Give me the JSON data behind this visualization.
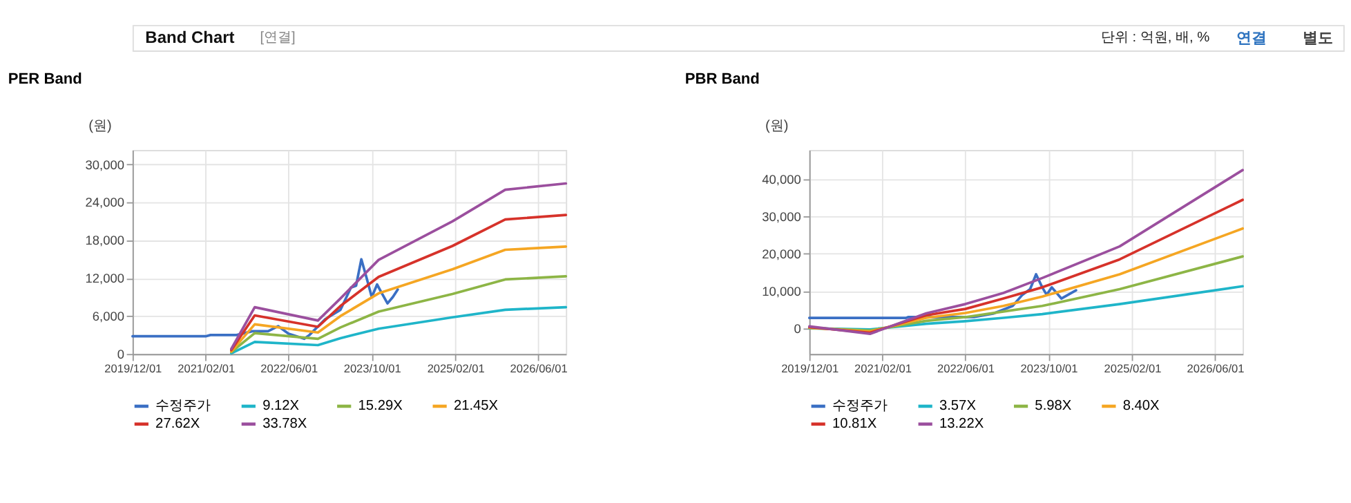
{
  "chart_data": [
    {
      "type": "line",
      "title": "PER Band",
      "ylabel": "(원)",
      "annotations": [
        "Band Chart",
        "[연결]",
        "단위 : 억원, 배, %",
        "연결",
        "별도"
      ],
      "xlim": [
        "2019-12-01",
        "2026-11-10"
      ],
      "xticks": [
        {
          "value": "2019-12-01",
          "label": "2019/12/01"
        },
        {
          "value": "2021-02-01",
          "label": "2021/02/01"
        },
        {
          "value": "2022-06-01",
          "label": "2022/06/01"
        },
        {
          "value": "2023-10-01",
          "label": "2023/10/01"
        },
        {
          "value": "2025-02-01",
          "label": "2025/02/01"
        },
        {
          "value": "2026-06-01",
          "label": "2026/06/01"
        }
      ],
      "ylim": [
        0,
        32300
      ],
      "yticks": [
        {
          "value": 0,
          "label": "0"
        },
        {
          "value": 6000,
          "label": "6,000"
        },
        {
          "value": 12000,
          "label": "12,000"
        },
        {
          "value": 18000,
          "label": "18,000"
        },
        {
          "value": 24000,
          "label": "24,000"
        },
        {
          "value": 30000,
          "label": "30,000"
        }
      ],
      "grid": true,
      "legend": "bottom",
      "series": [
        {
          "name": "수정주가",
          "color": "#3a6fc4",
          "x": [
            "2019-12-01",
            "2021-02-01",
            "2021-03-01",
            "2021-08-01",
            "2021-11-01",
            "2022-02-01",
            "2022-04-01",
            "2022-06-01",
            "2022-09-01",
            "2022-10-01",
            "2023-01-01",
            "2023-04-01",
            "2023-06-01",
            "2023-07-01",
            "2023-08-01",
            "2023-09-01",
            "2023-10-01",
            "2023-11-01",
            "2023-12-01",
            "2024-01-01",
            "2024-02-01",
            "2024-03-01"
          ],
          "values": [
            2800,
            2800,
            3000,
            3000,
            3600,
            3600,
            4400,
            3200,
            2400,
            3000,
            5500,
            7000,
            10500,
            10800,
            15000,
            12000,
            9000,
            11000,
            9500,
            8000,
            9000,
            10200
          ]
        },
        {
          "name": "9.12X",
          "color": "#1fb5c9",
          "x": [
            "2021-07-01",
            "2021-11-15",
            "2022-11-20",
            "2023-04-01",
            "2023-11-10",
            "2025-01-15",
            "2025-11-20",
            "2026-11-10"
          ],
          "values": [
            100,
            1900,
            1400,
            2500,
            4000,
            5800,
            7000,
            7400
          ]
        },
        {
          "name": "15.29X",
          "color": "#8db546",
          "x": [
            "2021-07-01",
            "2021-11-15",
            "2022-11-20",
            "2023-04-01",
            "2023-11-10",
            "2025-01-15",
            "2025-11-20",
            "2026-11-10"
          ],
          "values": [
            300,
            3300,
            2400,
            4200,
            6700,
            9500,
            11800,
            12300
          ]
        },
        {
          "name": "21.45X",
          "color": "#f5a623",
          "x": [
            "2021-07-01",
            "2021-11-15",
            "2022-11-20",
            "2023-04-01",
            "2023-11-10",
            "2025-01-15",
            "2025-11-20",
            "2026-11-10"
          ],
          "values": [
            400,
            4700,
            3400,
            6000,
            9600,
            13400,
            16500,
            17000
          ]
        },
        {
          "name": "27.62X",
          "color": "#d6322a",
          "x": [
            "2021-07-01",
            "2021-11-15",
            "2022-11-20",
            "2023-04-01",
            "2023-11-10",
            "2025-01-15",
            "2025-11-20",
            "2026-11-10"
          ],
          "values": [
            600,
            6100,
            4300,
            7600,
            12200,
            17100,
            21300,
            22000
          ]
        },
        {
          "name": "33.78X",
          "color": "#9b4f9e",
          "x": [
            "2021-07-01",
            "2021-11-15",
            "2022-11-20",
            "2023-04-01",
            "2023-11-10",
            "2025-01-15",
            "2025-11-20",
            "2026-11-10"
          ],
          "values": [
            800,
            7400,
            5300,
            8800,
            14900,
            21000,
            26000,
            27000
          ]
        }
      ]
    },
    {
      "type": "line",
      "title": "PBR Band",
      "ylabel": "(원)",
      "xlim": [
        "2019-12-01",
        "2026-11-10"
      ],
      "xticks": [
        {
          "value": "2019-12-01",
          "label": "2019/12/01"
        },
        {
          "value": "2021-02-01",
          "label": "2021/02/01"
        },
        {
          "value": "2022-06-01",
          "label": "2022/06/01"
        },
        {
          "value": "2023-10-01",
          "label": "2023/10/01"
        },
        {
          "value": "2025-02-01",
          "label": "2025/02/01"
        },
        {
          "value": "2026-06-01",
          "label": "2026/06/01"
        }
      ],
      "ylim": [
        -6900,
        47900
      ],
      "yticks": [
        {
          "value": 0,
          "label": "0"
        },
        {
          "value": 10000,
          "label": "10,000"
        },
        {
          "value": 20000,
          "label": "20,000"
        },
        {
          "value": 30000,
          "label": "30,000"
        },
        {
          "value": 40000,
          "label": "40,000"
        }
      ],
      "grid": true,
      "legend": "bottom",
      "series": [
        {
          "name": "수정주가",
          "color": "#3a6fc4",
          "x": [
            "2019-12-01",
            "2021-06-20",
            "2021-07-01",
            "2022-07-20",
            "2022-11-15",
            "2023-03-05",
            "2023-05-01",
            "2023-06-15",
            "2023-07-20",
            "2023-08-25",
            "2023-09-20",
            "2023-10-20",
            "2023-12-15",
            "2024-03-10"
          ],
          "values": [
            2800,
            2800,
            3000,
            3000,
            4000,
            6000,
            9000,
            10500,
            14500,
            11000,
            9000,
            11000,
            8000,
            10200
          ]
        },
        {
          "name": "3.57X",
          "color": "#1fb5c9",
          "x": [
            "2019-12-01",
            "2020-11-20",
            "2021-10-15",
            "2022-06-01",
            "2023-01-10",
            "2023-08-25",
            "2024-11-20",
            "2026-11-10"
          ],
          "values": [
            0,
            -300,
            1200,
            1900,
            2800,
            3800,
            6500,
            11300
          ]
        },
        {
          "name": "5.98X",
          "color": "#8db546",
          "x": [
            "2019-12-01",
            "2020-11-20",
            "2021-10-15",
            "2022-06-01",
            "2023-01-10",
            "2023-08-25",
            "2024-11-20",
            "2026-11-10"
          ],
          "values": [
            100,
            -600,
            2000,
            3000,
            4500,
            6000,
            10500,
            19300
          ]
        },
        {
          "name": "8.40X",
          "color": "#f5a623",
          "x": [
            "2019-12-01",
            "2020-11-20",
            "2021-10-15",
            "2022-06-01",
            "2023-01-10",
            "2023-08-25",
            "2024-11-20",
            "2026-11-10"
          ],
          "values": [
            200,
            -900,
            2800,
            4100,
            6000,
            8500,
            14500,
            26800
          ]
        },
        {
          "name": "10.81X",
          "color": "#d6322a",
          "x": [
            "2019-12-01",
            "2020-11-20",
            "2021-10-15",
            "2022-06-01",
            "2023-01-10",
            "2023-08-25",
            "2024-11-20",
            "2026-11-10"
          ],
          "values": [
            300,
            -1200,
            3500,
            5200,
            8000,
            11000,
            18500,
            34500
          ]
        },
        {
          "name": "13.22X",
          "color": "#9b4f9e",
          "x": [
            "2019-12-01",
            "2020-11-20",
            "2021-10-15",
            "2022-06-01",
            "2023-01-10",
            "2023-08-25",
            "2024-11-20",
            "2026-11-10"
          ],
          "values": [
            500,
            -1500,
            4000,
            6500,
            9500,
            13500,
            22000,
            42500
          ]
        }
      ]
    }
  ]
}
